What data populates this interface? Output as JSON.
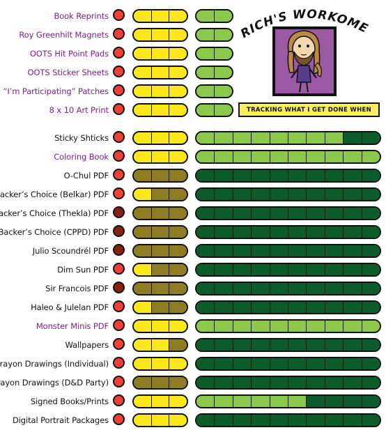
{
  "title": "RICH'S WORKOMETER!",
  "tagline": "TRACKING WHAT I GET DONE WHEN",
  "colors": {
    "red": "#ee4036",
    "dark_red": "#8a1f14",
    "yellow": "#fbe81c",
    "olive": "#8d7c22",
    "light_green": "#8cc84b",
    "dark_green": "#0b5b2b",
    "purple_label": "#7b1f8f",
    "portrait_bg": "#9b5aa4"
  },
  "items": [
    {
      "label": "Book Reprints",
      "purple": true,
      "circle": "red",
      "status": [
        "Y",
        "Y",
        "Y"
      ],
      "progress_segments": 2,
      "progress_filled": 2,
      "progress_fill": "light"
    },
    {
      "label": "Roy Greenhilt Magnets",
      "purple": true,
      "circle": "red",
      "status": [
        "Y",
        "Y",
        "Y"
      ],
      "progress_segments": 2,
      "progress_filled": 2,
      "progress_fill": "light"
    },
    {
      "label": "OOTS Hit Point Pads",
      "purple": true,
      "circle": "red",
      "status": [
        "Y",
        "Y",
        "Y"
      ],
      "progress_segments": 2,
      "progress_filled": 2,
      "progress_fill": "light"
    },
    {
      "label": "OOTS Sticker Sheets",
      "purple": true,
      "circle": "red",
      "status": [
        "Y",
        "Y",
        "Y"
      ],
      "progress_segments": 2,
      "progress_filled": 2,
      "progress_fill": "light"
    },
    {
      "label": "“I’m Participating” Patches",
      "purple": true,
      "circle": "red",
      "status": [
        "Y",
        "Y",
        "Y"
      ],
      "progress_segments": 2,
      "progress_filled": 2,
      "progress_fill": "light"
    },
    {
      "label": "8 x 10 Art Print",
      "purple": true,
      "circle": "red",
      "status": [
        "Y",
        "Y",
        "Y"
      ],
      "progress_segments": 2,
      "progress_filled": 2,
      "progress_fill": "light"
    },
    {
      "label": "Sticky Shticks",
      "purple": false,
      "circle": "red",
      "status": [
        "Y",
        "Y",
        "Y"
      ],
      "progress_segments": 10,
      "progress_filled": 8,
      "progress_fill": "light"
    },
    {
      "label": "Coloring Book",
      "purple": true,
      "circle": "red",
      "status": [
        "Y",
        "Y",
        "Y"
      ],
      "progress_segments": 10,
      "progress_filled": 10,
      "progress_fill": "light"
    },
    {
      "label": "O-Chul PDF",
      "purple": false,
      "circle": "red",
      "status": [
        "O",
        "O",
        "O"
      ],
      "progress_segments": 10,
      "progress_filled": 0,
      "progress_fill": "light"
    },
    {
      "label": "Backer’s Choice (Belkar) PDF",
      "purple": false,
      "circle": "red",
      "status": [
        "Y",
        "O",
        "O"
      ],
      "progress_segments": 10,
      "progress_filled": 0,
      "progress_fill": "light"
    },
    {
      "label": "Backer’s Choice (Thekla) PDF",
      "purple": false,
      "circle": "dark",
      "status": [
        "O",
        "O",
        "O"
      ],
      "progress_segments": 10,
      "progress_filled": 0,
      "progress_fill": "light"
    },
    {
      "label": "Backer’s Choice (CPPD) PDF",
      "purple": false,
      "circle": "dark",
      "status": [
        "O",
        "O",
        "O"
      ],
      "progress_segments": 10,
      "progress_filled": 0,
      "progress_fill": "light"
    },
    {
      "label": "Julio Scoundrél PDF",
      "purple": false,
      "circle": "dark",
      "status": [
        "O",
        "O",
        "O"
      ],
      "progress_segments": 10,
      "progress_filled": 0,
      "progress_fill": "light"
    },
    {
      "label": "Dim Sun PDF",
      "purple": false,
      "circle": "red",
      "status": [
        "Y",
        "O",
        "O"
      ],
      "progress_segments": 10,
      "progress_filled": 0,
      "progress_fill": "light"
    },
    {
      "label": "Sir Francois  PDF",
      "purple": false,
      "circle": "dark",
      "status": [
        "O",
        "O",
        "O"
      ],
      "progress_segments": 10,
      "progress_filled": 0,
      "progress_fill": "light"
    },
    {
      "label": "Haleo & Julelan PDF",
      "purple": false,
      "circle": "red",
      "status": [
        "Y",
        "O",
        "O"
      ],
      "progress_segments": 10,
      "progress_filled": 0,
      "progress_fill": "light"
    },
    {
      "label": "Monster Minis PDF",
      "purple": true,
      "circle": "red",
      "status": [
        "Y",
        "Y",
        "Y"
      ],
      "progress_segments": 10,
      "progress_filled": 10,
      "progress_fill": "light"
    },
    {
      "label": "Wallpapers",
      "purple": false,
      "circle": "red",
      "status": [
        "Y",
        "Y",
        "O"
      ],
      "progress_segments": 10,
      "progress_filled": 0,
      "progress_fill": "light"
    },
    {
      "label": "Crayon Drawings (Individual)",
      "purple": false,
      "circle": "red",
      "status": [
        "Y",
        "Y",
        "Y"
      ],
      "progress_segments": 10,
      "progress_filled": 0,
      "progress_fill": "light"
    },
    {
      "label": "Crayon Drawings (D&D Party)",
      "purple": false,
      "circle": "red",
      "status": [
        "O",
        "O",
        "O"
      ],
      "progress_segments": 10,
      "progress_filled": 0,
      "progress_fill": "light"
    },
    {
      "label": "Signed Books/Prints",
      "purple": false,
      "circle": "red",
      "status": [
        "Y",
        "Y",
        "Y"
      ],
      "progress_segments": 10,
      "progress_filled": 6,
      "progress_fill": "light"
    },
    {
      "label": "Digital Portrait Packages",
      "purple": false,
      "circle": "red",
      "status": [
        "Y",
        "Y",
        "Y"
      ],
      "progress_segments": 10,
      "progress_filled": 0,
      "progress_fill": "light"
    }
  ]
}
